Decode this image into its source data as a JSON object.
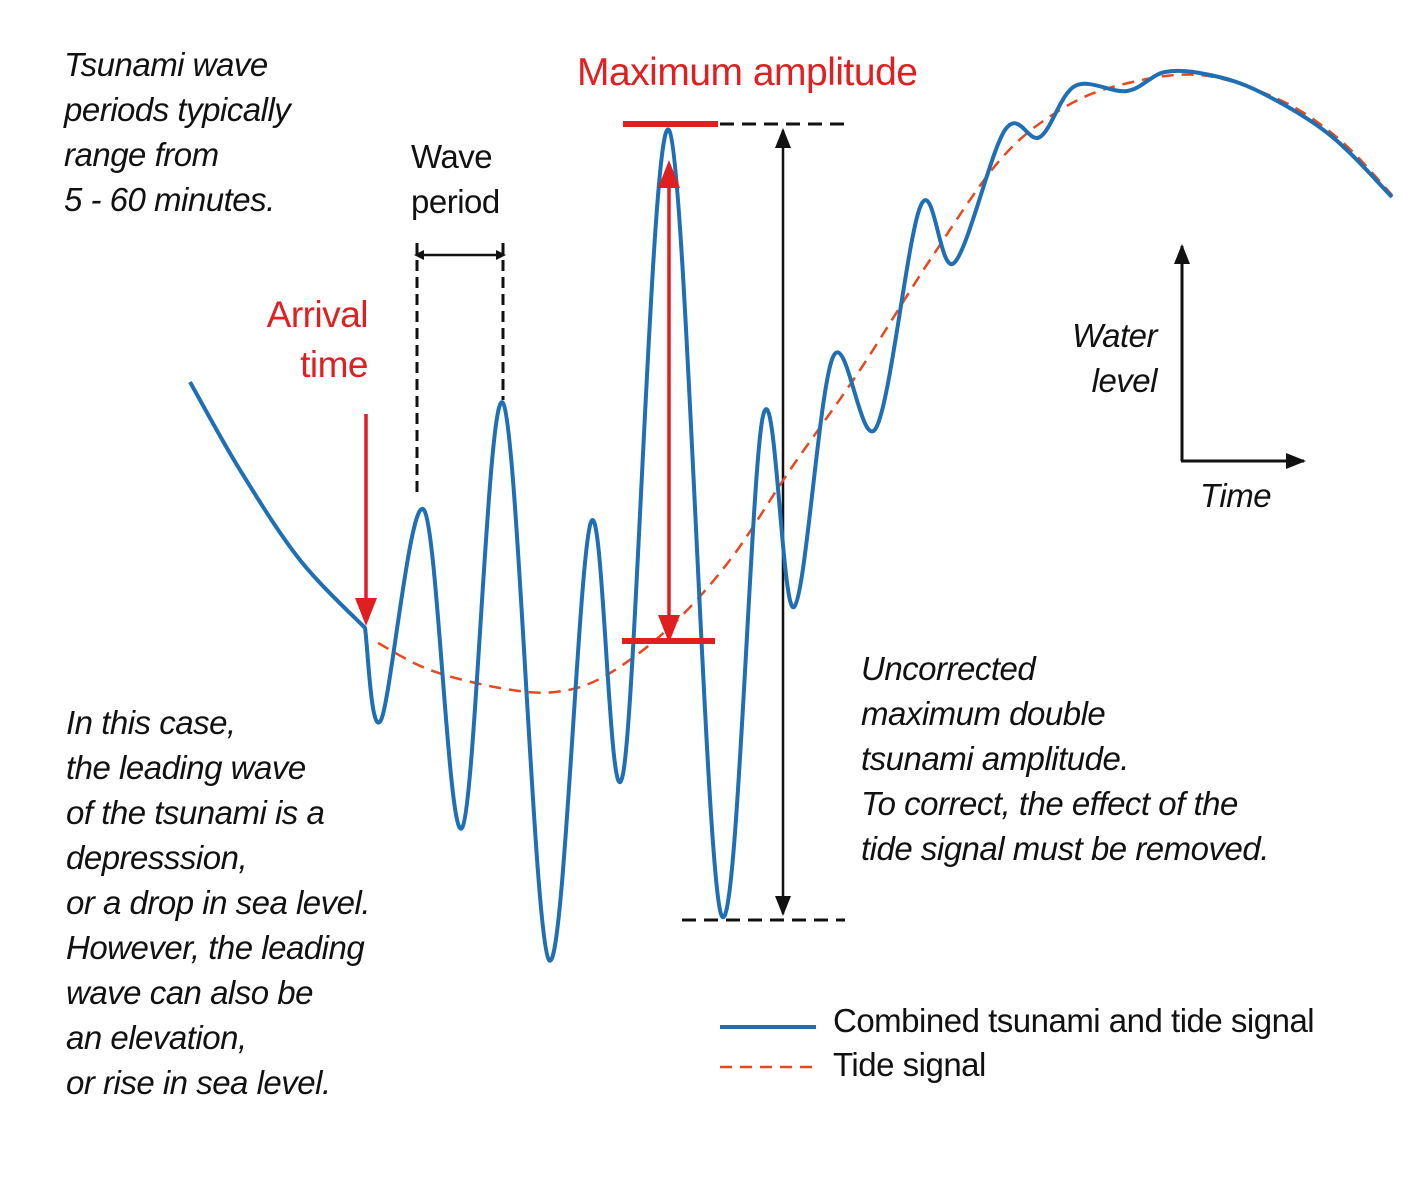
{
  "colors": {
    "combined": "#1f6fb4",
    "tide": "#e8481e",
    "annotation_red": "#e02020",
    "black": "#111111"
  },
  "texts": {
    "period_note": "Tsunami wave\nperiods typically\nrange from\n5 - 60 minutes.",
    "wave_period": "Wave\nperiod",
    "arrival_time": "Arrival\ntime",
    "max_amplitude": "Maximum amplitude",
    "water_level": "Water\nlevel",
    "time": "Time",
    "leading_wave_note": "In this case,\nthe leading wave\nof the tsunami is a\ndepresssion,\nor a drop in sea level.\nHowever, the leading\nwave can also be\nan elevation,\nor rise in sea level.",
    "uncorrected_note": "Uncorrected\nmaximum double\ntsunami amplitude.\nTo correct, the effect of the\ntide signal must be removed."
  },
  "legend": [
    {
      "label": "Combined tsunami and tide signal",
      "style": "solid",
      "color": "#1f6fb4"
    },
    {
      "label": "Tide signal",
      "style": "dashed",
      "color": "#e8481e"
    }
  ]
}
